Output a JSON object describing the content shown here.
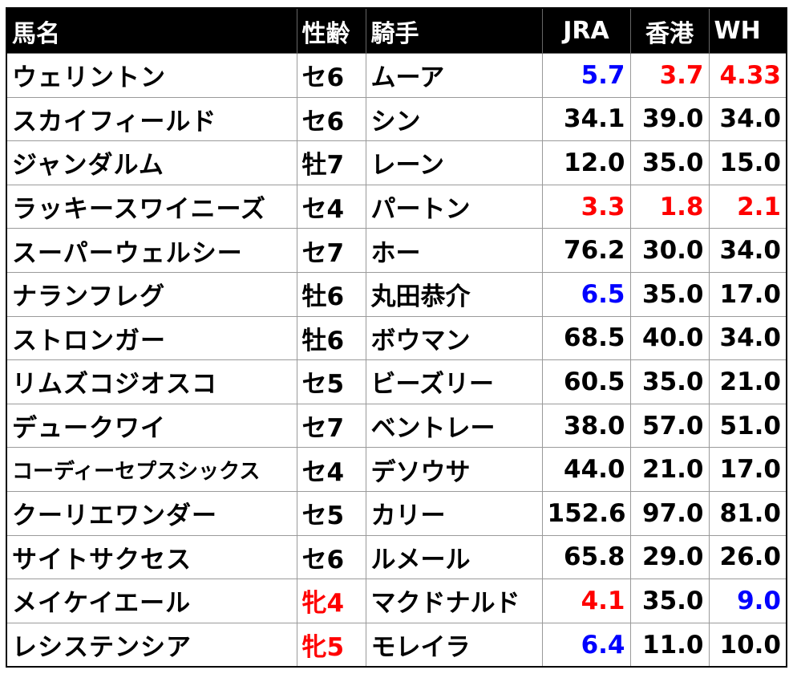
{
  "colors": {
    "header_bg": "#000000",
    "header_text": "#ffffff",
    "red": "#ff0000",
    "blue": "#0000ff",
    "black": "#000000"
  },
  "header": {
    "horse": "馬名",
    "sexage": "性齢",
    "jockey": "騎手",
    "jra": "JRA",
    "hk": "香港",
    "wh": "WH"
  },
  "rows": [
    {
      "horse": "ウェリントン",
      "sexage": "セ6",
      "jockey": "ムーア",
      "jra": "5.7",
      "hk": "3.7",
      "wh": "4.33",
      "sexage_color": "black",
      "jra_color": "blue",
      "hk_color": "red",
      "wh_color": "red"
    },
    {
      "horse": "スカイフィールド",
      "sexage": "セ6",
      "jockey": "シン",
      "jra": "34.1",
      "hk": "39.0",
      "wh": "34.0",
      "sexage_color": "black",
      "jra_color": "black",
      "hk_color": "black",
      "wh_color": "black"
    },
    {
      "horse": "ジャンダルム",
      "sexage": "牡7",
      "jockey": "レーン",
      "jra": "12.0",
      "hk": "35.0",
      "wh": "15.0",
      "sexage_color": "black",
      "jra_color": "black",
      "hk_color": "black",
      "wh_color": "black"
    },
    {
      "horse": "ラッキースワイニーズ",
      "sexage": "セ4",
      "jockey": "パートン",
      "jra": "3.3",
      "hk": "1.8",
      "wh": "2.1",
      "sexage_color": "black",
      "jra_color": "red",
      "hk_color": "red",
      "wh_color": "red"
    },
    {
      "horse": "スーパーウェルシー",
      "sexage": "セ7",
      "jockey": "ホー",
      "jra": "76.2",
      "hk": "30.0",
      "wh": "34.0",
      "sexage_color": "black",
      "jra_color": "black",
      "hk_color": "black",
      "wh_color": "black"
    },
    {
      "horse": "ナランフレグ",
      "sexage": "牡6",
      "jockey": "丸田恭介",
      "jra": "6.5",
      "hk": "35.0",
      "wh": "17.0",
      "sexage_color": "black",
      "jra_color": "blue",
      "hk_color": "black",
      "wh_color": "black"
    },
    {
      "horse": "ストロンガー",
      "sexage": "牡6",
      "jockey": "ボウマン",
      "jra": "68.5",
      "hk": "40.0",
      "wh": "34.0",
      "sexage_color": "black",
      "jra_color": "black",
      "hk_color": "black",
      "wh_color": "black"
    },
    {
      "horse": "リムズコジオスコ",
      "sexage": "セ5",
      "jockey": "ビーズリー",
      "jra": "60.5",
      "hk": "35.0",
      "wh": "21.0",
      "sexage_color": "black",
      "jra_color": "black",
      "hk_color": "black",
      "wh_color": "black"
    },
    {
      "horse": "デュークワイ",
      "sexage": "セ7",
      "jockey": "ベントレー",
      "jra": "38.0",
      "hk": "57.0",
      "wh": "51.0",
      "sexage_color": "black",
      "jra_color": "black",
      "hk_color": "black",
      "wh_color": "black"
    },
    {
      "horse": "コーディーセプスシックス",
      "sexage": "セ4",
      "jockey": "デソウサ",
      "jra": "44.0",
      "hk": "21.0",
      "wh": "17.0",
      "sexage_color": "black",
      "jra_color": "black",
      "hk_color": "black",
      "wh_color": "black",
      "small_name": true
    },
    {
      "horse": "クーリエワンダー",
      "sexage": "セ5",
      "jockey": "カリー",
      "jra": "152.6",
      "hk": "97.0",
      "wh": "81.0",
      "sexage_color": "black",
      "jra_color": "black",
      "hk_color": "black",
      "wh_color": "black"
    },
    {
      "horse": "サイトサクセス",
      "sexage": "セ6",
      "jockey": "ルメール",
      "jra": "65.8",
      "hk": "29.0",
      "wh": "26.0",
      "sexage_color": "black",
      "jra_color": "black",
      "hk_color": "black",
      "wh_color": "black"
    },
    {
      "horse": "メイケイエール",
      "sexage": "牝4",
      "jockey": "マクドナルド",
      "jra": "4.1",
      "hk": "35.0",
      "wh": "9.0",
      "sexage_color": "red",
      "jra_color": "red",
      "hk_color": "black",
      "wh_color": "blue"
    },
    {
      "horse": "レシステンシア",
      "sexage": "牝5",
      "jockey": "モレイラ",
      "jra": "6.4",
      "hk": "11.0",
      "wh": "10.0",
      "sexage_color": "red",
      "jra_color": "blue",
      "hk_color": "black",
      "wh_color": "black"
    }
  ]
}
